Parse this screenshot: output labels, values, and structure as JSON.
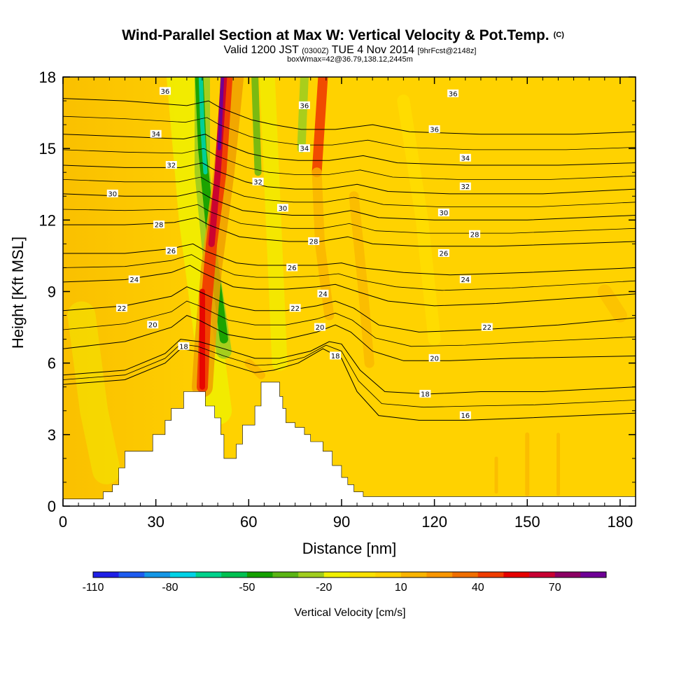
{
  "chart_data": {
    "type": "heatmap",
    "title_main": "Wind-Parallel Section at Max W: Vertical Velocity & Pot.Temp.",
    "title_mark": "(C)",
    "subtitle_parts": [
      "Valid 1200 JST",
      "(0300Z)",
      "TUE 4 Nov 2014",
      "[9hrFcst@2148z]"
    ],
    "subtitle2": "boxWmax=42@36.79,138.12,2445m",
    "xlabel": "Distance [nm]",
    "ylabel": "Height [Kft MSL]",
    "xlim": [
      0,
      185
    ],
    "ylim": [
      0,
      18
    ],
    "xticks": [
      0,
      30,
      60,
      90,
      120,
      150,
      180
    ],
    "yticks": [
      0,
      3,
      6,
      9,
      12,
      15,
      18
    ],
    "colorbar": {
      "label": "Vertical Velocity [cm/s]",
      "tick_labels": [
        -110,
        -80,
        -50,
        -20,
        10,
        40,
        70
      ],
      "levels": [
        -110,
        -100,
        -90,
        -80,
        -70,
        -60,
        -50,
        -40,
        -30,
        -20,
        -10,
        0,
        10,
        20,
        30,
        40,
        50,
        60,
        70,
        80
      ],
      "colors": [
        "#1f1fe6",
        "#1e5cf0",
        "#1496e6",
        "#00d2e6",
        "#00d28c",
        "#00c050",
        "#14a000",
        "#5ab414",
        "#a0cd1e",
        "#f0f000",
        "#fae100",
        "#ffd200",
        "#fab400",
        "#fa9600",
        "#f06e00",
        "#f03c00",
        "#e60000",
        "#c80032",
        "#8c0064",
        "#6e0096"
      ]
    },
    "terrain": [
      [
        0,
        0.3
      ],
      [
        12,
        0.3
      ],
      [
        13,
        0.6
      ],
      [
        16,
        0.9
      ],
      [
        18,
        1.6
      ],
      [
        20,
        2.3
      ],
      [
        26,
        2.3
      ],
      [
        29,
        3.0
      ],
      [
        33,
        3.6
      ],
      [
        35,
        4.1
      ],
      [
        39,
        4.8
      ],
      [
        45,
        4.8
      ],
      [
        46,
        4.2
      ],
      [
        48,
        4.2
      ],
      [
        49,
        3.7
      ],
      [
        51,
        3.0
      ],
      [
        52,
        2.0
      ],
      [
        55,
        2.0
      ],
      [
        56,
        2.6
      ],
      [
        58,
        3.4
      ],
      [
        61,
        3.4
      ],
      [
        62,
        4.2
      ],
      [
        64,
        5.2
      ],
      [
        68,
        5.2
      ],
      [
        70,
        4.6
      ],
      [
        71,
        4.1
      ],
      [
        72,
        3.5
      ],
      [
        75,
        3.3
      ],
      [
        78,
        3.0
      ],
      [
        80,
        2.7
      ],
      [
        84,
        2.3
      ],
      [
        87,
        1.7
      ],
      [
        90,
        1.2
      ],
      [
        92,
        0.9
      ],
      [
        94,
        0.6
      ],
      [
        97,
        0.4
      ],
      [
        185,
        0.4
      ]
    ],
    "theta_contours": [
      {
        "label": "16",
        "points": [
          [
            0,
            5.1
          ],
          [
            20,
            5.3
          ],
          [
            33,
            6.0
          ],
          [
            38,
            6.6
          ],
          [
            43,
            6.5
          ],
          [
            52,
            6.0
          ],
          [
            62,
            5.6
          ],
          [
            68,
            5.7
          ],
          [
            76,
            6.0
          ],
          [
            84,
            6.6
          ],
          [
            90,
            6.2
          ],
          [
            95,
            4.8
          ],
          [
            102,
            3.8
          ],
          [
            115,
            3.6
          ],
          [
            130,
            3.6
          ],
          [
            150,
            3.7
          ],
          [
            185,
            3.9
          ]
        ]
      },
      {
        "label": "18",
        "points": [
          [
            0,
            5.5
          ],
          [
            20,
            5.7
          ],
          [
            33,
            6.4
          ],
          [
            38,
            7.0
          ],
          [
            44,
            6.9
          ],
          [
            52,
            6.6
          ],
          [
            62,
            6.2
          ],
          [
            70,
            6.2
          ],
          [
            80,
            6.5
          ],
          [
            86,
            6.9
          ],
          [
            90,
            6.8
          ],
          [
            96,
            5.7
          ],
          [
            104,
            4.8
          ],
          [
            118,
            4.7
          ],
          [
            135,
            4.8
          ],
          [
            155,
            4.8
          ],
          [
            185,
            5.0
          ]
        ]
      },
      {
        "label": "20",
        "points": [
          [
            0,
            6.6
          ],
          [
            20,
            6.9
          ],
          [
            35,
            7.5
          ],
          [
            40,
            8.0
          ],
          [
            44,
            7.8
          ],
          [
            53,
            7.2
          ],
          [
            62,
            7.0
          ],
          [
            72,
            7.0
          ],
          [
            82,
            7.3
          ],
          [
            88,
            7.6
          ],
          [
            93,
            7.3
          ],
          [
            100,
            6.5
          ],
          [
            110,
            6.1
          ],
          [
            125,
            6.1
          ],
          [
            145,
            6.2
          ],
          [
            185,
            6.3
          ]
        ]
      },
      {
        "label": "22",
        "points": [
          [
            0,
            8.2
          ],
          [
            20,
            8.4
          ],
          [
            35,
            8.8
          ],
          [
            40,
            9.2
          ],
          [
            44,
            9.0
          ],
          [
            54,
            8.4
          ],
          [
            62,
            8.2
          ],
          [
            72,
            8.2
          ],
          [
            82,
            8.4
          ],
          [
            88,
            8.6
          ],
          [
            94,
            8.3
          ],
          [
            102,
            7.6
          ],
          [
            115,
            7.3
          ],
          [
            135,
            7.4
          ],
          [
            160,
            7.6
          ],
          [
            185,
            7.9
          ]
        ]
      },
      {
        "label": "24",
        "points": [
          [
            0,
            9.4
          ],
          [
            20,
            9.5
          ],
          [
            35,
            9.8
          ],
          [
            41,
            10.1
          ],
          [
            45,
            9.8
          ],
          [
            55,
            9.2
          ],
          [
            62,
            9.1
          ],
          [
            72,
            9.1
          ],
          [
            82,
            9.2
          ],
          [
            88,
            9.3
          ],
          [
            95,
            9.0
          ],
          [
            105,
            8.6
          ],
          [
            120,
            8.4
          ],
          [
            140,
            8.5
          ],
          [
            185,
            8.9
          ]
        ]
      },
      {
        "label": "26",
        "points": [
          [
            0,
            10.6
          ],
          [
            20,
            10.6
          ],
          [
            35,
            10.8
          ],
          [
            42,
            11.0
          ],
          [
            46,
            10.7
          ],
          [
            56,
            10.2
          ],
          [
            63,
            10.1
          ],
          [
            72,
            10.1
          ],
          [
            82,
            10.1
          ],
          [
            90,
            10.2
          ],
          [
            96,
            10.0
          ],
          [
            110,
            9.8
          ],
          [
            125,
            9.7
          ],
          [
            150,
            9.8
          ],
          [
            185,
            10.0
          ]
        ]
      },
      {
        "label": "28",
        "points": [
          [
            0,
            11.8
          ],
          [
            20,
            11.8
          ],
          [
            36,
            11.9
          ],
          [
            43,
            12.1
          ],
          [
            47,
            11.8
          ],
          [
            57,
            11.3
          ],
          [
            64,
            11.2
          ],
          [
            73,
            11.1
          ],
          [
            83,
            11.1
          ],
          [
            92,
            11.3
          ],
          [
            100,
            11.0
          ],
          [
            115,
            10.9
          ],
          [
            140,
            10.9
          ],
          [
            185,
            11.1
          ]
        ]
      },
      {
        "label": "30",
        "points": [
          [
            0,
            13.1
          ],
          [
            20,
            13.0
          ],
          [
            37,
            13.0
          ],
          [
            44,
            13.2
          ],
          [
            48,
            12.9
          ],
          [
            58,
            12.4
          ],
          [
            65,
            12.3
          ],
          [
            74,
            12.2
          ],
          [
            84,
            12.2
          ],
          [
            93,
            12.4
          ],
          [
            102,
            12.1
          ],
          [
            120,
            12.0
          ],
          [
            150,
            12.0
          ],
          [
            185,
            12.2
          ]
        ]
      },
      {
        "label": "32",
        "points": [
          [
            0,
            14.3
          ],
          [
            20,
            14.2
          ],
          [
            38,
            14.2
          ],
          [
            45,
            14.4
          ],
          [
            49,
            14.1
          ],
          [
            59,
            13.6
          ],
          [
            66,
            13.4
          ],
          [
            75,
            13.3
          ],
          [
            85,
            13.3
          ],
          [
            95,
            13.5
          ],
          [
            105,
            13.2
          ],
          [
            125,
            13.1
          ],
          [
            155,
            13.1
          ],
          [
            185,
            13.3
          ]
        ]
      },
      {
        "label": "34",
        "points": [
          [
            0,
            15.6
          ],
          [
            20,
            15.5
          ],
          [
            39,
            15.4
          ],
          [
            46,
            15.6
          ],
          [
            50,
            15.3
          ],
          [
            60,
            14.8
          ],
          [
            67,
            14.6
          ],
          [
            76,
            14.5
          ],
          [
            86,
            14.5
          ],
          [
            97,
            14.7
          ],
          [
            108,
            14.4
          ],
          [
            130,
            14.3
          ],
          [
            160,
            14.3
          ],
          [
            185,
            14.4
          ]
        ]
      },
      {
        "label": "36",
        "points": [
          [
            0,
            17.1
          ],
          [
            20,
            17.0
          ],
          [
            40,
            16.8
          ],
          [
            47,
            17.0
          ],
          [
            51,
            16.7
          ],
          [
            61,
            16.2
          ],
          [
            68,
            16.0
          ],
          [
            77,
            15.8
          ],
          [
            88,
            15.8
          ],
          [
            100,
            16.0
          ],
          [
            112,
            15.7
          ],
          [
            135,
            15.6
          ],
          [
            165,
            15.6
          ],
          [
            185,
            15.7
          ]
        ]
      }
    ],
    "theta_labels": [
      {
        "text": "36",
        "x": 33,
        "y": 17.4
      },
      {
        "text": "36",
        "x": 78,
        "y": 16.8
      },
      {
        "text": "36",
        "x": 126,
        "y": 17.3
      },
      {
        "text": "36",
        "x": 120,
        "y": 15.8
      },
      {
        "text": "34",
        "x": 30,
        "y": 15.6
      },
      {
        "text": "34",
        "x": 78,
        "y": 15.0
      },
      {
        "text": "34",
        "x": 130,
        "y": 14.6
      },
      {
        "text": "32",
        "x": 35,
        "y": 14.3
      },
      {
        "text": "32",
        "x": 63,
        "y": 13.6
      },
      {
        "text": "32",
        "x": 130,
        "y": 13.4
      },
      {
        "text": "30",
        "x": 16,
        "y": 13.1
      },
      {
        "text": "30",
        "x": 71,
        "y": 12.5
      },
      {
        "text": "30",
        "x": 123,
        "y": 12.3
      },
      {
        "text": "28",
        "x": 31,
        "y": 11.8
      },
      {
        "text": "28",
        "x": 81,
        "y": 11.1
      },
      {
        "text": "28",
        "x": 133,
        "y": 11.4
      },
      {
        "text": "26",
        "x": 35,
        "y": 10.7
      },
      {
        "text": "26",
        "x": 74,
        "y": 10.0
      },
      {
        "text": "26",
        "x": 123,
        "y": 10.6
      },
      {
        "text": "24",
        "x": 23,
        "y": 9.5
      },
      {
        "text": "24",
        "x": 84,
        "y": 8.9
      },
      {
        "text": "24",
        "x": 130,
        "y": 9.5
      },
      {
        "text": "22",
        "x": 19,
        "y": 8.3
      },
      {
        "text": "22",
        "x": 75,
        "y": 8.3
      },
      {
        "text": "22",
        "x": 137,
        "y": 7.5
      },
      {
        "text": "20",
        "x": 29,
        "y": 7.6
      },
      {
        "text": "20",
        "x": 83,
        "y": 7.5
      },
      {
        "text": "20",
        "x": 120,
        "y": 6.2
      },
      {
        "text": "18",
        "x": 39,
        "y": 6.7
      },
      {
        "text": "18",
        "x": 88,
        "y": 6.3
      },
      {
        "text": "18",
        "x": 117,
        "y": 4.7
      },
      {
        "text": "16",
        "x": 130,
        "y": 3.8
      }
    ]
  }
}
